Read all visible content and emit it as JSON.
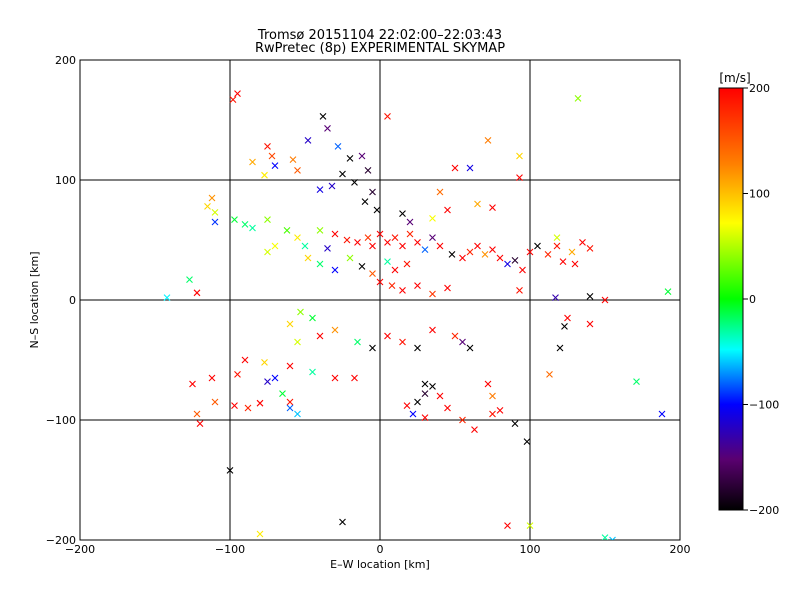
{
  "chart_data": {
    "type": "scatter",
    "title": "Tromsø 20151104 22:02:00–22:03:43",
    "subtitle": "RwPretec (8p) EXPERIMENTAL SKYMAP",
    "xlabel": "E–W location [km]",
    "ylabel": "N–S location [km]",
    "xlim": [
      -200,
      200
    ],
    "ylim": [
      -200,
      200
    ],
    "x_ticks": [
      "−200",
      "−100",
      "0",
      "100",
      "200"
    ],
    "y_ticks": [
      "−200",
      "−100",
      "0",
      "100",
      "200"
    ],
    "grid": true,
    "colorbar": {
      "unit": "[m/s]",
      "range": [
        -200,
        200
      ],
      "ticks": [
        "200",
        "100",
        "0",
        "−100",
        "−200"
      ],
      "colors": [
        "#000000",
        "#5a0070",
        "#0000ff",
        "#00ffff",
        "#00ff00",
        "#ffff00",
        "#ff8000",
        "#ff0000"
      ]
    },
    "series": [
      {
        "marker": "x",
        "points": [
          {
            "x": -98,
            "y": 167,
            "v": 190
          },
          {
            "x": -95,
            "y": 172,
            "v": 200
          },
          {
            "x": -38,
            "y": 153,
            "v": -200
          },
          {
            "x": -35,
            "y": 143,
            "v": -150
          },
          {
            "x": -48,
            "y": 133,
            "v": -120
          },
          {
            "x": 5,
            "y": 153,
            "v": 190
          },
          {
            "x": 72,
            "y": 133,
            "v": 130
          },
          {
            "x": 93,
            "y": 120,
            "v": 90
          },
          {
            "x": 132,
            "y": 168,
            "v": 40
          },
          {
            "x": 50,
            "y": 110,
            "v": 200
          },
          {
            "x": 60,
            "y": 110,
            "v": -110
          },
          {
            "x": 93,
            "y": 102,
            "v": 200
          },
          {
            "x": -55,
            "y": 108,
            "v": 150
          },
          {
            "x": -58,
            "y": 117,
            "v": 130
          },
          {
            "x": -72,
            "y": 120,
            "v": 160
          },
          {
            "x": -75,
            "y": 128,
            "v": 190
          },
          {
            "x": -70,
            "y": 112,
            "v": -100
          },
          {
            "x": -85,
            "y": 115,
            "v": 110
          },
          {
            "x": -77,
            "y": 104,
            "v": 80
          },
          {
            "x": -28,
            "y": 128,
            "v": -80
          },
          {
            "x": -20,
            "y": 118,
            "v": -200
          },
          {
            "x": -12,
            "y": 120,
            "v": -150
          },
          {
            "x": -8,
            "y": 108,
            "v": -180
          },
          {
            "x": -25,
            "y": 105,
            "v": -200
          },
          {
            "x": -17,
            "y": 98,
            "v": -200
          },
          {
            "x": -32,
            "y": 95,
            "v": -120
          },
          {
            "x": -40,
            "y": 92,
            "v": -110
          },
          {
            "x": -5,
            "y": 90,
            "v": -180
          },
          {
            "x": -10,
            "y": 82,
            "v": -200
          },
          {
            "x": -2,
            "y": 75,
            "v": -200
          },
          {
            "x": 40,
            "y": 90,
            "v": 140
          },
          {
            "x": 65,
            "y": 80,
            "v": 110
          },
          {
            "x": 75,
            "y": 77,
            "v": 200
          },
          {
            "x": 45,
            "y": 75,
            "v": 200
          },
          {
            "x": 15,
            "y": 72,
            "v": -200
          },
          {
            "x": 20,
            "y": 65,
            "v": -150
          },
          {
            "x": 35,
            "y": 68,
            "v": 70
          },
          {
            "x": -115,
            "y": 78,
            "v": 90
          },
          {
            "x": -112,
            "y": 85,
            "v": 120
          },
          {
            "x": -110,
            "y": 73,
            "v": 60
          },
          {
            "x": -110,
            "y": 65,
            "v": -90
          },
          {
            "x": -97,
            "y": 67,
            "v": -10
          },
          {
            "x": -90,
            "y": 63,
            "v": -20
          },
          {
            "x": -85,
            "y": 60,
            "v": -30
          },
          {
            "x": -75,
            "y": 67,
            "v": 40
          },
          {
            "x": -62,
            "y": 58,
            "v": 20
          },
          {
            "x": -70,
            "y": 45,
            "v": 70
          },
          {
            "x": -75,
            "y": 40,
            "v": 60
          },
          {
            "x": -55,
            "y": 52,
            "v": 80
          },
          {
            "x": -50,
            "y": 45,
            "v": -30
          },
          {
            "x": -40,
            "y": 58,
            "v": 40
          },
          {
            "x": -35,
            "y": 43,
            "v": -120
          },
          {
            "x": -30,
            "y": 55,
            "v": 200
          },
          {
            "x": -22,
            "y": 50,
            "v": 190
          },
          {
            "x": -15,
            "y": 48,
            "v": 200
          },
          {
            "x": -8,
            "y": 52,
            "v": 170
          },
          {
            "x": -5,
            "y": 45,
            "v": 200
          },
          {
            "x": 0,
            "y": 55,
            "v": 200
          },
          {
            "x": 5,
            "y": 48,
            "v": 200
          },
          {
            "x": 10,
            "y": 52,
            "v": 190
          },
          {
            "x": 15,
            "y": 45,
            "v": 200
          },
          {
            "x": 20,
            "y": 55,
            "v": 180
          },
          {
            "x": 25,
            "y": 48,
            "v": 200
          },
          {
            "x": 30,
            "y": 42,
            "v": -80
          },
          {
            "x": 35,
            "y": 52,
            "v": -150
          },
          {
            "x": 40,
            "y": 45,
            "v": 200
          },
          {
            "x": 48,
            "y": 38,
            "v": -200
          },
          {
            "x": 55,
            "y": 35,
            "v": 200
          },
          {
            "x": 60,
            "y": 40,
            "v": 180
          },
          {
            "x": 65,
            "y": 45,
            "v": 200
          },
          {
            "x": 70,
            "y": 38,
            "v": 120
          },
          {
            "x": 75,
            "y": 42,
            "v": 200
          },
          {
            "x": 80,
            "y": 35,
            "v": 200
          },
          {
            "x": 85,
            "y": 30,
            "v": -110
          },
          {
            "x": 90,
            "y": 33,
            "v": -180
          },
          {
            "x": 95,
            "y": 25,
            "v": 200
          },
          {
            "x": 105,
            "y": 45,
            "v": -200
          },
          {
            "x": 112,
            "y": 38,
            "v": 180
          },
          {
            "x": 118,
            "y": 45,
            "v": 190
          },
          {
            "x": 122,
            "y": 32,
            "v": 200
          },
          {
            "x": 128,
            "y": 40,
            "v": 110
          },
          {
            "x": 135,
            "y": 48,
            "v": 200
          },
          {
            "x": 140,
            "y": 43,
            "v": 190
          },
          {
            "x": 130,
            "y": 30,
            "v": 200
          },
          {
            "x": 118,
            "y": 52,
            "v": 60
          },
          {
            "x": 100,
            "y": 40,
            "v": 200
          },
          {
            "x": -127,
            "y": 17,
            "v": -20
          },
          {
            "x": -122,
            "y": 6,
            "v": 200
          },
          {
            "x": -142,
            "y": 2,
            "v": -50
          },
          {
            "x": -20,
            "y": 35,
            "v": 40
          },
          {
            "x": -12,
            "y": 28,
            "v": -200
          },
          {
            "x": -5,
            "y": 22,
            "v": 150
          },
          {
            "x": 5,
            "y": 32,
            "v": -30
          },
          {
            "x": 10,
            "y": 25,
            "v": 200
          },
          {
            "x": 18,
            "y": 30,
            "v": 190
          },
          {
            "x": -30,
            "y": 25,
            "v": -100
          },
          {
            "x": -40,
            "y": 30,
            "v": -20
          },
          {
            "x": -48,
            "y": 35,
            "v": 90
          },
          {
            "x": 0,
            "y": 15,
            "v": 200
          },
          {
            "x": 8,
            "y": 12,
            "v": 180
          },
          {
            "x": 15,
            "y": 8,
            "v": 200
          },
          {
            "x": 25,
            "y": 12,
            "v": 200
          },
          {
            "x": 35,
            "y": 5,
            "v": 170
          },
          {
            "x": 45,
            "y": 10,
            "v": 200
          },
          {
            "x": 93,
            "y": 8,
            "v": 190
          },
          {
            "x": 117,
            "y": 2,
            "v": -130
          },
          {
            "x": 140,
            "y": 3,
            "v": -200
          },
          {
            "x": 150,
            "y": 0,
            "v": 200
          },
          {
            "x": 192,
            "y": 7,
            "v": -10
          },
          {
            "x": 125,
            "y": -15,
            "v": 200
          },
          {
            "x": 123,
            "y": -22,
            "v": -200
          },
          {
            "x": 140,
            "y": -20,
            "v": 200
          },
          {
            "x": -53,
            "y": -10,
            "v": 40
          },
          {
            "x": -45,
            "y": -15,
            "v": -10
          },
          {
            "x": -60,
            "y": -20,
            "v": 90
          },
          {
            "x": -55,
            "y": -35,
            "v": 60
          },
          {
            "x": -40,
            "y": -30,
            "v": 200
          },
          {
            "x": -30,
            "y": -25,
            "v": 120
          },
          {
            "x": -15,
            "y": -35,
            "v": -20
          },
          {
            "x": -5,
            "y": -40,
            "v": -200
          },
          {
            "x": 5,
            "y": -30,
            "v": 200
          },
          {
            "x": 15,
            "y": -35,
            "v": 190
          },
          {
            "x": 25,
            "y": -40,
            "v": -200
          },
          {
            "x": 35,
            "y": -25,
            "v": 200
          },
          {
            "x": 50,
            "y": -30,
            "v": 180
          },
          {
            "x": 60,
            "y": -40,
            "v": -200
          },
          {
            "x": 55,
            "y": -35,
            "v": -150
          },
          {
            "x": 120,
            "y": -40,
            "v": -200
          },
          {
            "x": -77,
            "y": -52,
            "v": 90
          },
          {
            "x": -60,
            "y": -55,
            "v": 200
          },
          {
            "x": -45,
            "y": -60,
            "v": -30
          },
          {
            "x": -70,
            "y": -65,
            "v": -100
          },
          {
            "x": -75,
            "y": -68,
            "v": -120
          },
          {
            "x": -90,
            "y": -50,
            "v": 200
          },
          {
            "x": -95,
            "y": -62,
            "v": 190
          },
          {
            "x": -112,
            "y": -65,
            "v": 200
          },
          {
            "x": -125,
            "y": -70,
            "v": 200
          },
          {
            "x": -110,
            "y": -85,
            "v": 150
          },
          {
            "x": -97,
            "y": -88,
            "v": 200
          },
          {
            "x": -88,
            "y": -90,
            "v": 180
          },
          {
            "x": -80,
            "y": -86,
            "v": 200
          },
          {
            "x": -60,
            "y": -85,
            "v": 190
          },
          {
            "x": -60,
            "y": -90,
            "v": -80
          },
          {
            "x": -55,
            "y": -95,
            "v": -60
          },
          {
            "x": -65,
            "y": -78,
            "v": -10
          },
          {
            "x": -120,
            "y": -103,
            "v": 200
          },
          {
            "x": -122,
            "y": -95,
            "v": 150
          },
          {
            "x": -30,
            "y": -65,
            "v": 200
          },
          {
            "x": -17,
            "y": -65,
            "v": 200
          },
          {
            "x": 30,
            "y": -70,
            "v": -200
          },
          {
            "x": 35,
            "y": -72,
            "v": -200
          },
          {
            "x": 40,
            "y": -80,
            "v": 200
          },
          {
            "x": 30,
            "y": -78,
            "v": -180
          },
          {
            "x": 25,
            "y": -85,
            "v": -200
          },
          {
            "x": 18,
            "y": -88,
            "v": 200
          },
          {
            "x": 22,
            "y": -95,
            "v": -100
          },
          {
            "x": 30,
            "y": -98,
            "v": 200
          },
          {
            "x": 45,
            "y": -90,
            "v": 200
          },
          {
            "x": 55,
            "y": -100,
            "v": 180
          },
          {
            "x": 63,
            "y": -108,
            "v": 200
          },
          {
            "x": 75,
            "y": -95,
            "v": 190
          },
          {
            "x": 80,
            "y": -92,
            "v": 200
          },
          {
            "x": 90,
            "y": -103,
            "v": -200
          },
          {
            "x": 98,
            "y": -118,
            "v": -200
          },
          {
            "x": 72,
            "y": -70,
            "v": 200
          },
          {
            "x": 75,
            "y": -80,
            "v": 130
          },
          {
            "x": 113,
            "y": -62,
            "v": 140
          },
          {
            "x": 171,
            "y": -68,
            "v": -20
          },
          {
            "x": 188,
            "y": -95,
            "v": -100
          },
          {
            "x": -100,
            "y": -142,
            "v": -200
          },
          {
            "x": -25,
            "y": -185,
            "v": -200
          },
          {
            "x": 85,
            "y": -188,
            "v": 200
          },
          {
            "x": 100,
            "y": -188,
            "v": 60
          },
          {
            "x": -80,
            "y": -195,
            "v": 80
          },
          {
            "x": 150,
            "y": -198,
            "v": -30
          },
          {
            "x": 155,
            "y": -200,
            "v": -60
          }
        ]
      }
    ]
  }
}
